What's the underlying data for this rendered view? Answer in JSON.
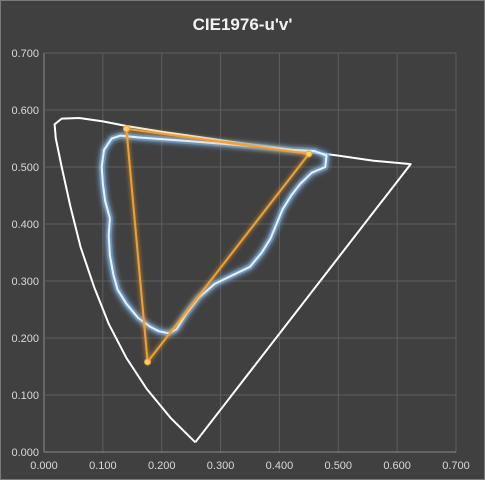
{
  "chart_data": {
    "type": "scatter",
    "title": "CIE1976-u'v'",
    "xlabel": "",
    "ylabel": "",
    "xlim": [
      0.0,
      0.7
    ],
    "ylim": [
      0.0,
      0.7
    ],
    "x_ticks": [
      "0.000",
      "0.100",
      "0.200",
      "0.300",
      "0.400",
      "0.500",
      "0.600",
      "0.700"
    ],
    "y_ticks": [
      "0.000",
      "0.100",
      "0.200",
      "0.300",
      "0.400",
      "0.500",
      "0.600",
      "0.700"
    ],
    "grid": true,
    "legend": "none",
    "series": [
      {
        "color": "#ffffff",
        "style": "line",
        "points": [
          [
            0.257,
            0.017
          ],
          [
            0.215,
            0.06
          ],
          [
            0.175,
            0.11
          ],
          [
            0.14,
            0.165
          ],
          [
            0.11,
            0.225
          ],
          [
            0.085,
            0.29
          ],
          [
            0.062,
            0.36
          ],
          [
            0.045,
            0.43
          ],
          [
            0.03,
            0.5
          ],
          [
            0.02,
            0.55
          ],
          [
            0.018,
            0.575
          ],
          [
            0.03,
            0.585
          ],
          [
            0.06,
            0.586
          ],
          [
            0.1,
            0.58
          ],
          [
            0.14,
            0.572
          ],
          [
            0.2,
            0.562
          ],
          [
            0.26,
            0.553
          ],
          [
            0.32,
            0.544
          ],
          [
            0.38,
            0.536
          ],
          [
            0.44,
            0.528
          ],
          [
            0.5,
            0.52
          ],
          [
            0.56,
            0.511
          ],
          [
            0.623,
            0.505
          ],
          [
            0.257,
            0.017
          ]
        ]
      },
      {
        "color": "#e8f2fb",
        "style": "line",
        "points": [
          [
            0.212,
            0.208
          ],
          [
            0.195,
            0.212
          ],
          [
            0.18,
            0.22
          ],
          [
            0.16,
            0.235
          ],
          [
            0.14,
            0.26
          ],
          [
            0.125,
            0.285
          ],
          [
            0.118,
            0.31
          ],
          [
            0.112,
            0.345
          ],
          [
            0.11,
            0.38
          ],
          [
            0.112,
            0.41
          ],
          [
            0.104,
            0.44
          ],
          [
            0.1,
            0.47
          ],
          [
            0.098,
            0.5
          ],
          [
            0.102,
            0.53
          ],
          [
            0.115,
            0.55
          ],
          [
            0.13,
            0.555
          ],
          [
            0.16,
            0.552
          ],
          [
            0.2,
            0.549
          ],
          [
            0.25,
            0.545
          ],
          [
            0.3,
            0.541
          ],
          [
            0.36,
            0.536
          ],
          [
            0.42,
            0.53
          ],
          [
            0.46,
            0.528
          ],
          [
            0.48,
            0.52
          ],
          [
            0.478,
            0.5
          ],
          [
            0.455,
            0.49
          ],
          [
            0.435,
            0.47
          ],
          [
            0.42,
            0.45
          ],
          [
            0.405,
            0.425
          ],
          [
            0.395,
            0.4
          ],
          [
            0.385,
            0.375
          ],
          [
            0.37,
            0.35
          ],
          [
            0.35,
            0.325
          ],
          [
            0.32,
            0.31
          ],
          [
            0.29,
            0.295
          ],
          [
            0.262,
            0.27
          ],
          [
            0.24,
            0.24
          ],
          [
            0.225,
            0.215
          ],
          [
            0.212,
            0.208
          ]
        ]
      },
      {
        "color": "#f0a030",
        "style": "line-markers",
        "points": [
          [
            0.14,
            0.567
          ],
          [
            0.45,
            0.523
          ],
          [
            0.176,
            0.158
          ],
          [
            0.14,
            0.567
          ]
        ]
      }
    ]
  }
}
